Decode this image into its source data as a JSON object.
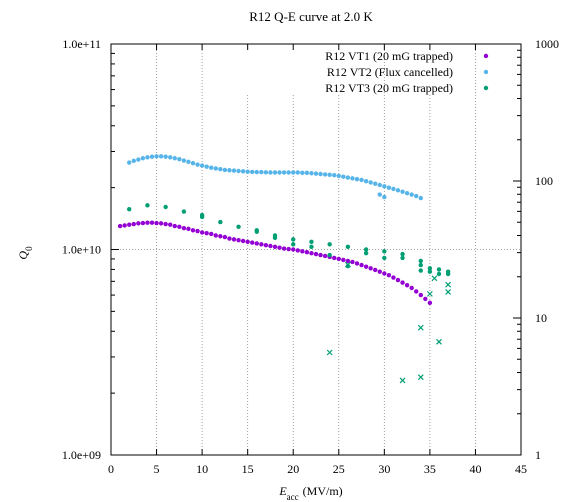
{
  "chart_data": {
    "type": "scatter",
    "title": "R12 Q-E curve at 2.0 K",
    "xlabel_main": "E",
    "xlabel_sub": "acc",
    "xlabel_unit": "(MV/m)",
    "ylabel_main": "Q",
    "ylabel_sub": "0",
    "xlim": [
      0,
      45
    ],
    "ylim": [
      1000000000,
      100000000000
    ],
    "y_scale": "log",
    "y2lim": [
      1,
      1000
    ],
    "y2_scale": "log",
    "x_ticks": [
      "0",
      "5",
      "10",
      "15",
      "20",
      "25",
      "30",
      "35",
      "40",
      "45"
    ],
    "y_ticks": [
      "1.0e+09",
      "1.0e+10",
      "1.0e+11"
    ],
    "y2_ticks": [
      "1",
      "10",
      "100",
      "1000"
    ],
    "grid": "vertical dotted lines at x = 5..40 (partial), horizontal dotted line at 1.0e+10",
    "legend_position": "top-right",
    "series": [
      {
        "name": "R12 VT1 (20 mG trapped)",
        "color": "#9400d3",
        "marker": "dot",
        "points": [
          [
            1.0,
            13000000000.0
          ],
          [
            1.5,
            13100000000.0
          ],
          [
            2.0,
            13200000000.0
          ],
          [
            2.5,
            13300000000.0
          ],
          [
            3.0,
            13400000000.0
          ],
          [
            3.5,
            13450000000.0
          ],
          [
            4.0,
            13500000000.0
          ],
          [
            4.5,
            13500000000.0
          ],
          [
            5.0,
            13450000000.0
          ],
          [
            5.5,
            13400000000.0
          ],
          [
            6.0,
            13300000000.0
          ],
          [
            6.5,
            13200000000.0
          ],
          [
            7.0,
            13000000000.0
          ],
          [
            7.5,
            12900000000.0
          ],
          [
            8.0,
            12700000000.0
          ],
          [
            8.5,
            12600000000.0
          ],
          [
            9.0,
            12400000000.0
          ],
          [
            9.5,
            12300000000.0
          ],
          [
            10.0,
            12100000000.0
          ],
          [
            10.5,
            12000000000.0
          ],
          [
            11.0,
            11900000000.0
          ],
          [
            11.5,
            11700000000.0
          ],
          [
            12.0,
            11600000000.0
          ],
          [
            12.5,
            11500000000.0
          ],
          [
            13.0,
            11300000000.0
          ],
          [
            13.5,
            11200000000.0
          ],
          [
            14.0,
            11100000000.0
          ],
          [
            14.5,
            11000000000.0
          ],
          [
            15.0,
            10900000000.0
          ],
          [
            15.5,
            10800000000.0
          ],
          [
            16.0,
            10700000000.0
          ],
          [
            16.5,
            10600000000.0
          ],
          [
            17.0,
            10500000000.0
          ],
          [
            17.5,
            10400000000.0
          ],
          [
            18.0,
            10300000000.0
          ],
          [
            18.5,
            10200000000.0
          ],
          [
            19.0,
            10100000000.0
          ],
          [
            19.5,
            10050000000.0
          ],
          [
            20.0,
            10000000000.0
          ],
          [
            20.5,
            9900000000.0
          ],
          [
            21.0,
            9800000000.0
          ],
          [
            21.5,
            9700000000.0
          ],
          [
            22.0,
            9600000000.0
          ],
          [
            22.5,
            9500000000.0
          ],
          [
            23.0,
            9400000000.0
          ],
          [
            23.5,
            9300000000.0
          ],
          [
            24.0,
            9200000000.0
          ],
          [
            24.5,
            9100000000.0
          ],
          [
            25.0,
            9000000000.0
          ],
          [
            25.5,
            8900000000.0
          ],
          [
            26.0,
            8800000000.0
          ],
          [
            26.5,
            8700000000.0
          ],
          [
            27.0,
            8550000000.0
          ],
          [
            27.5,
            8400000000.0
          ],
          [
            28.0,
            8250000000.0
          ],
          [
            28.5,
            8100000000.0
          ],
          [
            29.0,
            7950000000.0
          ],
          [
            29.5,
            7800000000.0
          ],
          [
            30.0,
            7650000000.0
          ],
          [
            30.5,
            7500000000.0
          ],
          [
            31.0,
            7300000000.0
          ],
          [
            31.5,
            7100000000.0
          ],
          [
            32.0,
            6900000000.0
          ],
          [
            32.5,
            6700000000.0
          ],
          [
            33.0,
            6500000000.0
          ],
          [
            33.5,
            6250000000.0
          ],
          [
            34.0,
            6000000000.0
          ],
          [
            34.5,
            5750000000.0
          ],
          [
            35.0,
            5500000000.0
          ]
        ]
      },
      {
        "name": "R12 VT2 (Flux cancelled)",
        "color": "#56b4e9",
        "marker": "dot",
        "points": [
          [
            2.0,
            26500000000.0
          ],
          [
            2.5,
            27000000000.0
          ],
          [
            3.0,
            27400000000.0
          ],
          [
            3.5,
            27800000000.0
          ],
          [
            4.0,
            28100000000.0
          ],
          [
            4.5,
            28300000000.0
          ],
          [
            5.0,
            28400000000.0
          ],
          [
            5.5,
            28400000000.0
          ],
          [
            6.0,
            28300000000.0
          ],
          [
            6.5,
            28100000000.0
          ],
          [
            7.0,
            27800000000.0
          ],
          [
            7.5,
            27500000000.0
          ],
          [
            8.0,
            27100000000.0
          ],
          [
            8.5,
            26700000000.0
          ],
          [
            9.0,
            26300000000.0
          ],
          [
            9.5,
            25900000000.0
          ],
          [
            10.0,
            25600000000.0
          ],
          [
            10.5,
            25300000000.0
          ],
          [
            11.0,
            25000000000.0
          ],
          [
            11.5,
            24800000000.0
          ],
          [
            12.0,
            24600000000.0
          ],
          [
            12.5,
            24400000000.0
          ],
          [
            13.0,
            24300000000.0
          ],
          [
            13.5,
            24200000000.0
          ],
          [
            14.0,
            24100000000.0
          ],
          [
            14.5,
            24000000000.0
          ],
          [
            15.0,
            23900000000.0
          ],
          [
            15.5,
            23850000000.0
          ],
          [
            16.0,
            23800000000.0
          ],
          [
            16.5,
            23800000000.0
          ],
          [
            17.0,
            23750000000.0
          ],
          [
            17.5,
            23700000000.0
          ],
          [
            18.0,
            23700000000.0
          ],
          [
            18.5,
            23700000000.0
          ],
          [
            19.0,
            23700000000.0
          ],
          [
            19.5,
            23700000000.0
          ],
          [
            20.0,
            23700000000.0
          ],
          [
            20.5,
            23700000000.0
          ],
          [
            21.0,
            23600000000.0
          ],
          [
            21.5,
            23600000000.0
          ],
          [
            22.0,
            23500000000.0
          ],
          [
            22.5,
            23400000000.0
          ],
          [
            23.0,
            23300000000.0
          ],
          [
            23.5,
            23200000000.0
          ],
          [
            24.0,
            23100000000.0
          ],
          [
            24.5,
            23000000000.0
          ],
          [
            25.0,
            22800000000.0
          ],
          [
            25.5,
            22600000000.0
          ],
          [
            26.0,
            22400000000.0
          ],
          [
            26.5,
            22200000000.0
          ],
          [
            27.0,
            22000000000.0
          ],
          [
            27.5,
            21800000000.0
          ],
          [
            28.0,
            21500000000.0
          ],
          [
            28.5,
            21200000000.0
          ],
          [
            29.0,
            20900000000.0
          ],
          [
            29.5,
            20600000000.0
          ],
          [
            30.0,
            20300000000.0
          ],
          [
            30.5,
            20000000000.0
          ],
          [
            31.0,
            19700000000.0
          ],
          [
            31.5,
            19400000000.0
          ],
          [
            32.0,
            19100000000.0
          ],
          [
            32.5,
            18800000000.0
          ],
          [
            33.0,
            18500000000.0
          ],
          [
            33.5,
            18200000000.0
          ],
          [
            34.0,
            17800000000.0
          ],
          [
            29.5,
            18500000000.0
          ],
          [
            30.0,
            18000000000.0
          ]
        ]
      },
      {
        "name": "R12 VT3 (20 mG trapped)",
        "color": "#009e73",
        "marker": "dot",
        "points": [
          [
            2.0,
            15700000000.0
          ],
          [
            4.0,
            16400000000.0
          ],
          [
            6.0,
            16100000000.0
          ],
          [
            8.0,
            15300000000.0
          ],
          [
            10.0,
            14700000000.0
          ],
          [
            10.0,
            14400000000.0
          ],
          [
            12.0,
            13600000000.0
          ],
          [
            14.0,
            12900000000.0
          ],
          [
            16.0,
            12200000000.0
          ],
          [
            16.0,
            12400000000.0
          ],
          [
            18.0,
            11700000000.0
          ],
          [
            18.0,
            11400000000.0
          ],
          [
            20.0,
            11200000000.0
          ],
          [
            20.0,
            10600000000.0
          ],
          [
            22.0,
            10900000000.0
          ],
          [
            22.0,
            10300000000.0
          ],
          [
            24.0,
            10600000000.0
          ],
          [
            24.0,
            9400000000.0
          ],
          [
            26.0,
            10300000000.0
          ],
          [
            26.0,
            8300000000.0
          ],
          [
            28.0,
            10000000000.0
          ],
          [
            28.0,
            9600000000.0
          ],
          [
            30.0,
            9800000000.0
          ],
          [
            30.0,
            9100000000.0
          ],
          [
            32.0,
            9500000000.0
          ],
          [
            32.0,
            9100000000.0
          ],
          [
            34.0,
            8800000000.0
          ],
          [
            34.0,
            8400000000.0
          ],
          [
            34.0,
            7900000000.0
          ],
          [
            35.0,
            8100000000.0
          ],
          [
            35.0,
            7800000000.0
          ],
          [
            36.0,
            8000000000.0
          ],
          [
            36.0,
            7600000000.0
          ],
          [
            37.0,
            7800000000.0
          ],
          [
            37.0,
            7600000000.0
          ]
        ]
      },
      {
        "name": "",
        "color": "#009e73",
        "marker": "cross",
        "axis": "y2",
        "points": [
          [
            24.0,
            5.6
          ],
          [
            26.0,
            24.5
          ],
          [
            32.0,
            3.5
          ],
          [
            34.0,
            3.7
          ],
          [
            34.0,
            8.5
          ],
          [
            35.0,
            15.0
          ],
          [
            35.5,
            19.5
          ],
          [
            36.0,
            6.7
          ],
          [
            37.0,
            15.5
          ],
          [
            37.0,
            17.5
          ]
        ]
      }
    ]
  }
}
